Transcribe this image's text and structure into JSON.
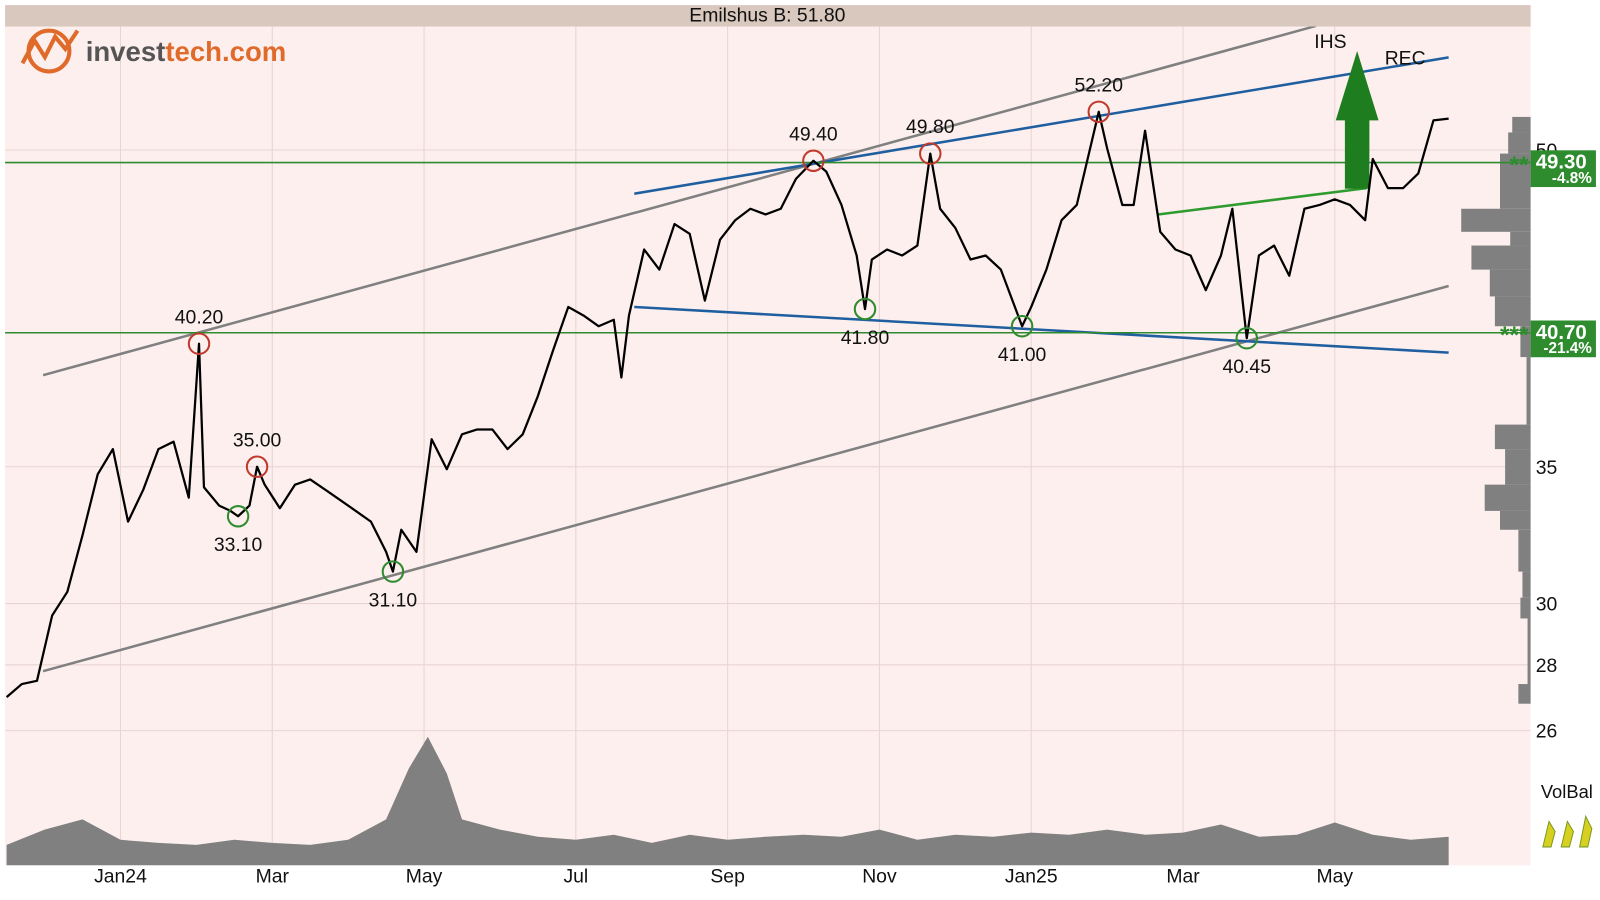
{
  "chart_data": {
    "type": "line",
    "title": "Emilshus B: 51.80",
    "logo": [
      "invest",
      "tech.com"
    ],
    "log_scale": true,
    "grid": true,
    "color": "#000000",
    "xlim": [
      -0.52,
      19.58
    ],
    "xticks": [
      {
        "value": 1,
        "label": "Jan24"
      },
      {
        "value": 3,
        "label": "Mar"
      },
      {
        "value": 5,
        "label": "May"
      },
      {
        "value": 7,
        "label": "Jul"
      },
      {
        "value": 9,
        "label": "Sep"
      },
      {
        "value": 11,
        "label": "Nov"
      },
      {
        "value": 13,
        "label": "Jan25"
      },
      {
        "value": 15,
        "label": "Mar"
      },
      {
        "value": 17,
        "label": "May"
      }
    ],
    "ylim": [
      22.34,
      57.86
    ],
    "yticks": [
      26,
      28,
      30,
      35,
      50
    ],
    "x": [
      -0.5,
      -0.3,
      -0.1,
      0.1,
      0.3,
      0.5,
      0.7,
      0.9,
      1.1,
      1.3,
      1.5,
      1.7,
      1.9,
      2.035,
      2.1,
      2.3,
      2.45,
      2.55,
      2.7,
      2.8,
      2.9,
      3.1,
      3.3,
      3.5,
      3.7,
      3.9,
      4.1,
      4.3,
      4.5,
      4.59,
      4.7,
      4.9,
      5.1,
      5.3,
      5.5,
      5.7,
      5.9,
      6.1,
      6.3,
      6.5,
      6.7,
      6.9,
      7.1,
      7.3,
      7.5,
      7.6,
      7.7,
      7.9,
      8.1,
      8.3,
      8.5,
      8.7,
      8.9,
      9.1,
      9.3,
      9.5,
      9.7,
      9.9,
      10.13,
      10.3,
      10.5,
      10.7,
      10.81,
      10.9,
      11.1,
      11.3,
      11.5,
      11.67,
      11.8,
      12.0,
      12.2,
      12.4,
      12.6,
      12.88,
      13.0,
      13.2,
      13.4,
      13.6,
      13.89,
      14.0,
      14.2,
      14.35,
      14.5,
      14.7,
      14.9,
      15.1,
      15.3,
      15.5,
      15.65,
      15.84,
      16.0,
      16.2,
      16.4,
      16.6,
      16.8,
      17.0,
      17.2,
      17.4,
      17.5,
      17.7,
      17.9,
      18.1,
      18.3,
      18.5
    ],
    "values": [
      27.0,
      27.4,
      27.5,
      29.6,
      30.4,
      32.4,
      34.7,
      35.7,
      32.9,
      34.1,
      35.7,
      36.0,
      33.8,
      40.2,
      34.2,
      33.5,
      33.3,
      33.1,
      33.5,
      35.0,
      34.3,
      33.4,
      34.3,
      34.5,
      34.1,
      33.7,
      33.3,
      32.9,
      31.8,
      31.1,
      32.6,
      31.8,
      36.1,
      34.9,
      36.3,
      36.5,
      36.5,
      35.7,
      36.3,
      37.9,
      39.9,
      41.9,
      41.5,
      41.0,
      41.3,
      38.7,
      41.5,
      44.7,
      43.7,
      46.0,
      45.5,
      42.2,
      45.2,
      46.2,
      46.8,
      46.5,
      46.8,
      48.4,
      49.4,
      48.8,
      47.0,
      44.4,
      41.8,
      44.2,
      44.7,
      44.4,
      44.9,
      49.8,
      46.8,
      45.8,
      44.2,
      44.4,
      43.7,
      41.0,
      41.9,
      43.7,
      46.2,
      47.0,
      52.2,
      50.1,
      47.0,
      47.0,
      51.1,
      45.6,
      44.7,
      44.4,
      42.7,
      44.4,
      46.8,
      40.45,
      44.4,
      44.9,
      43.4,
      46.8,
      47.0,
      47.3,
      47.0,
      46.2,
      49.5,
      47.9,
      47.9,
      48.7,
      51.7,
      51.8
    ],
    "highs": {
      "color": "#c0392b",
      "x": [
        2.035,
        2.8,
        10.13,
        11.67,
        13.89
      ],
      "values": [
        40.2,
        35.0,
        49.4,
        49.8,
        52.2
      ],
      "value_labels": [
        "40.20",
        "35.00",
        "49.40",
        "49.80",
        "52.20"
      ]
    },
    "lows": {
      "color": "#2e8b2e",
      "x": [
        2.55,
        4.59,
        10.81,
        12.88,
        15.84
      ],
      "values": [
        33.1,
        31.1,
        41.8,
        41.0,
        40.45
      ],
      "value_labels": [
        "33.10",
        "31.10",
        "41.80",
        "41.00",
        "40.45"
      ]
    },
    "trend_lines": [
      {
        "color": "#808080",
        "x": [
          -0.02,
          16.75
        ],
        "values": [
          38.8,
          57.5
        ]
      },
      {
        "color": "#808080",
        "x": [
          -0.02,
          18.5
        ],
        "values": [
          27.8,
          42.9
        ]
      },
      {
        "color": "#1f5fa0",
        "x": [
          7.77,
          18.5
        ],
        "values": [
          47.6,
          55.5
        ]
      },
      {
        "color": "#1f5fa0",
        "x": [
          7.77,
          18.5
        ],
        "values": [
          41.9,
          39.8
        ]
      },
      {
        "color": "#2e9b2e",
        "x": [
          14.67,
          17.42
        ],
        "values": [
          46.5,
          47.9
        ]
      }
    ],
    "levels": [
      {
        "value": 49.3,
        "label": "49.30",
        "change": "-4.8%",
        "stars": "**"
      },
      {
        "value": 40.7,
        "label": "40.70",
        "change": "-21.4%",
        "stars": "***"
      }
    ],
    "level_color": "#2e8b2e",
    "annotations": [
      "IHS",
      "REC"
    ],
    "volume": {
      "color": "#808080",
      "ylim": [
        0,
        130
      ],
      "x": [
        -0.5,
        0,
        0.5,
        1,
        1.5,
        2,
        2.5,
        3,
        3.5,
        4,
        4.5,
        4.8,
        5.05,
        5.3,
        5.5,
        6,
        6.5,
        7,
        7.5,
        8,
        8.5,
        9,
        9.5,
        10,
        10.5,
        11,
        11.5,
        12,
        12.5,
        13,
        13.5,
        14,
        14.5,
        15,
        15.5,
        16,
        16.5,
        17,
        17.5,
        18,
        18.5
      ],
      "values": [
        20,
        35,
        45,
        25,
        22,
        20,
        25,
        22,
        20,
        25,
        45,
        95,
        126,
        90,
        45,
        35,
        28,
        25,
        30,
        22,
        30,
        25,
        28,
        30,
        28,
        35,
        25,
        30,
        28,
        32,
        30,
        35,
        30,
        32,
        40,
        28,
        30,
        42,
        30,
        25,
        28
      ]
    },
    "volume_profile": {
      "color": "#808080",
      "bins": [
        26.8,
        27.4,
        29.5,
        30.2,
        31.1,
        32.6,
        33.3,
        34.3,
        35.7,
        36.7,
        39.6,
        41.0,
        42.4,
        43.7,
        44.9,
        45.6,
        46.8,
        49.8,
        51.0,
        51.9
      ],
      "values": [
        12,
        3,
        10,
        8,
        12,
        30,
        45,
        25,
        35,
        4,
        10,
        35,
        40,
        58,
        20,
        68,
        30,
        22,
        18
      ]
    },
    "indicator_label": "VolBal"
  }
}
